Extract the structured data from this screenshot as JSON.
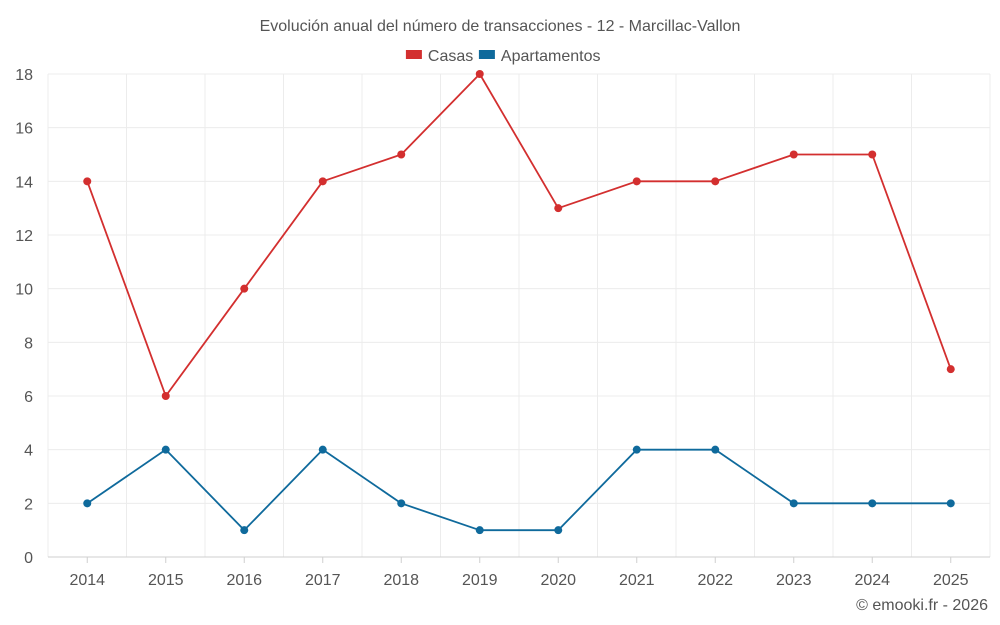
{
  "chart_data": {
    "type": "line",
    "title": "Evolución anual del número de transacciones - 12 - Marcillac-Vallon",
    "categories": [
      "2014",
      "2015",
      "2016",
      "2017",
      "2018",
      "2019",
      "2020",
      "2021",
      "2022",
      "2023",
      "2024",
      "2025"
    ],
    "series": [
      {
        "name": "Casas",
        "color": "#d32f2f",
        "values": [
          14,
          6,
          10,
          14,
          15,
          18,
          13,
          14,
          14,
          15,
          15,
          7
        ]
      },
      {
        "name": "Apartamentos",
        "color": "#0f6a9c",
        "values": [
          2,
          4,
          1,
          4,
          2,
          1,
          1,
          4,
          4,
          2,
          2,
          2
        ]
      }
    ],
    "xlabel": "",
    "ylabel": "",
    "ylim": [
      0,
      18
    ],
    "yticks": [
      0,
      2,
      4,
      6,
      8,
      10,
      12,
      14,
      16,
      18
    ],
    "grid": true,
    "legend": "top-center"
  },
  "credit": "© emooki.fr - 2026"
}
